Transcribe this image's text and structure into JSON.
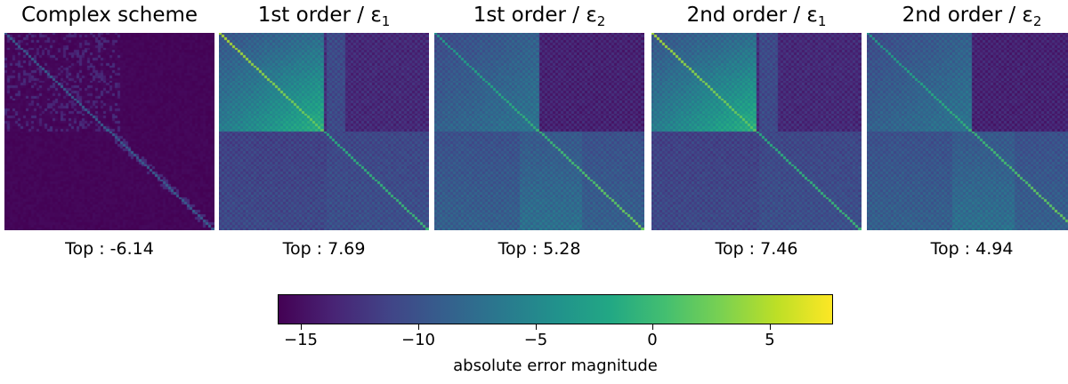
{
  "chart_data": [
    {
      "type": "heatmap",
      "title": "Complex scheme",
      "title_subscript": "",
      "annotation": "Top : -6.14",
      "top": -6.14,
      "pattern": "complex"
    },
    {
      "type": "heatmap",
      "title": "1st order / ε",
      "title_subscript": "1",
      "annotation": "Top : 7.69",
      "top": 7.69,
      "pattern": "eps1"
    },
    {
      "type": "heatmap",
      "title": "1st order / ε",
      "title_subscript": "2",
      "annotation": "Top : 5.28",
      "top": 5.28,
      "pattern": "eps2"
    },
    {
      "type": "heatmap",
      "title": "2nd order / ε",
      "title_subscript": "1",
      "annotation": "Top : 7.46",
      "top": 7.46,
      "pattern": "eps1"
    },
    {
      "type": "heatmap",
      "title": "2nd order / ε",
      "title_subscript": "2",
      "annotation": "Top : 4.94",
      "top": 4.94,
      "pattern": "eps2"
    }
  ],
  "colorbar": {
    "label": "absolute error magnitude",
    "colormap": "viridis",
    "range": [
      -16,
      7.69
    ],
    "ticks": [
      -15,
      -10,
      -5,
      0,
      5
    ],
    "tick_labels": [
      "−15",
      "−10",
      "−5",
      "0",
      "5"
    ]
  }
}
